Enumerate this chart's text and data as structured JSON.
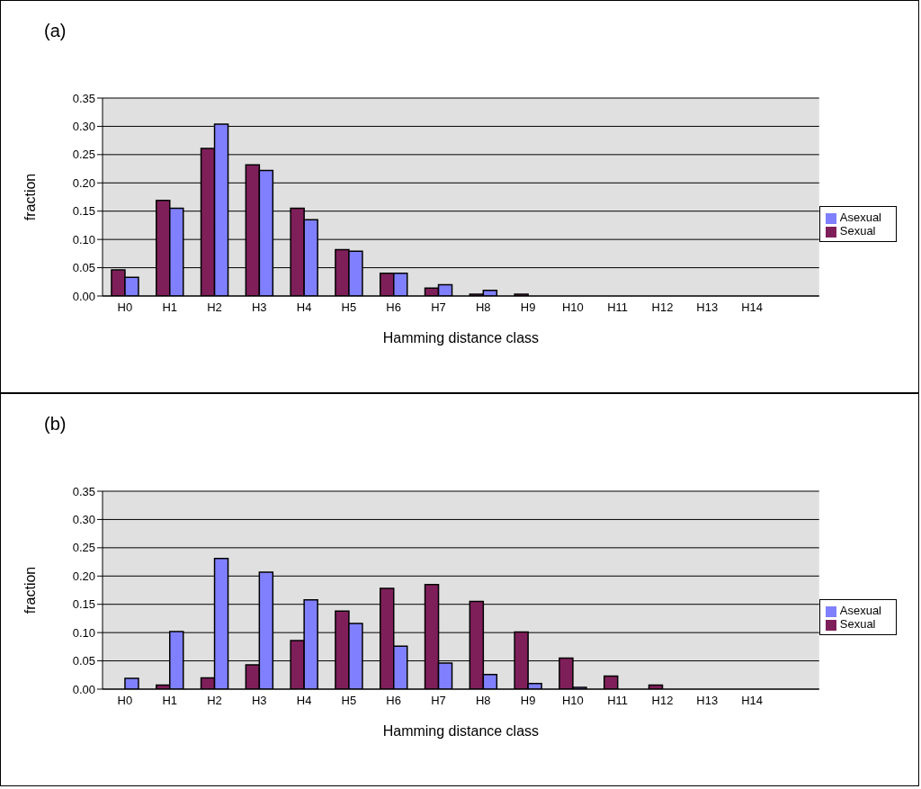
{
  "chart_data": [
    {
      "type": "bar",
      "title": "(a)",
      "xlabel": "Hamming distance class",
      "ylabel": "fraction",
      "categories": [
        "H0",
        "H1",
        "H2",
        "H3",
        "H4",
        "H5",
        "H6",
        "H7",
        "H8",
        "H9",
        "H10",
        "H11",
        "H12",
        "H13",
        "H14",
        null
      ],
      "series": [
        {
          "name": "Sexual",
          "color": "#7f1f5a",
          "values": [
            0.046,
            0.169,
            0.261,
            0.232,
            0.155,
            0.082,
            0.04,
            0.014,
            0.003,
            0.003,
            0,
            0,
            0,
            0,
            0,
            null
          ]
        },
        {
          "name": "Asexual",
          "color": "#8080ff",
          "values": [
            0.033,
            0.155,
            0.304,
            0.222,
            0.135,
            0.079,
            0.04,
            0.02,
            0.01,
            0,
            0,
            0,
            0,
            0,
            0,
            null
          ]
        }
      ],
      "ylim": [
        0,
        0.35
      ],
      "yticks": [
        {
          "value": 0,
          "label": "0.00"
        },
        {
          "value": 0.05,
          "label": "0.05"
        },
        {
          "value": 0.1,
          "label": "0.10"
        },
        {
          "value": 0.15,
          "label": "0.15"
        },
        {
          "value": 0.2,
          "label": "0.20"
        },
        {
          "value": 0.25,
          "label": "0.25"
        },
        {
          "value": 0.3,
          "label": "0.30"
        },
        {
          "value": 0.35,
          "label": "0.35"
        }
      ],
      "grid": "y",
      "legend": "right"
    },
    {
      "type": "bar",
      "title": "(b)",
      "xlabel": "Hamming distance class",
      "ylabel": "fraction",
      "categories": [
        "H0",
        "H1",
        "H2",
        "H3",
        "H4",
        "H5",
        "H6",
        "H7",
        "H8",
        "H9",
        "H10",
        "H11",
        "H12",
        "H13",
        "H14",
        null
      ],
      "series": [
        {
          "name": "Sexual",
          "color": "#7f1f5a",
          "values": [
            0,
            0.007,
            0.02,
            0.043,
            0.086,
            0.138,
            0.178,
            0.185,
            0.155,
            0.101,
            0.055,
            0.023,
            0.007,
            0,
            0,
            null
          ]
        },
        {
          "name": "Asexual",
          "color": "#8080ff",
          "values": [
            0.019,
            0.102,
            0.231,
            0.207,
            0.158,
            0.116,
            0.076,
            0.046,
            0.026,
            0.01,
            0.003,
            0,
            0,
            0,
            0,
            null
          ]
        }
      ],
      "ylim": [
        0,
        0.35
      ],
      "yticks": [
        {
          "value": 0,
          "label": "0.00"
        },
        {
          "value": 0.05,
          "label": "0.05"
        },
        {
          "value": 0.1,
          "label": "0.10"
        },
        {
          "value": 0.15,
          "label": "0.15"
        },
        {
          "value": 0.2,
          "label": "0.20"
        },
        {
          "value": 0.25,
          "label": "0.25"
        },
        {
          "value": 0.3,
          "label": "0.30"
        },
        {
          "value": 0.35,
          "label": "0.35"
        }
      ],
      "grid": "y",
      "legend": "right"
    }
  ]
}
